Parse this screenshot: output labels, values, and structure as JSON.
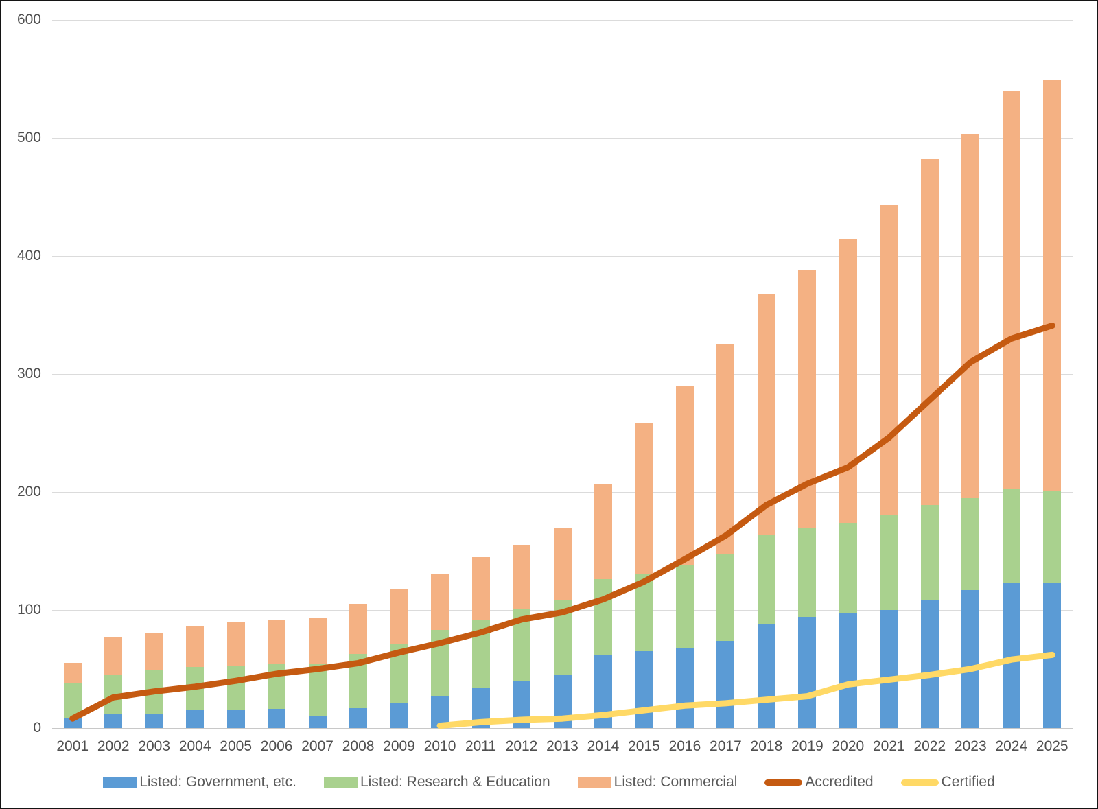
{
  "chart_data": {
    "type": "combo-stacked-bar-line",
    "title": "",
    "categories": [
      "2001",
      "2002",
      "2003",
      "2004",
      "2005",
      "2006",
      "2007",
      "2008",
      "2009",
      "2010",
      "2011",
      "2012",
      "2013",
      "2014",
      "2015",
      "2016",
      "2017",
      "2018",
      "2019",
      "2020",
      "2021",
      "2022",
      "2023",
      "2024",
      "2025"
    ],
    "series": [
      {
        "name": "Listed: Government, etc.",
        "type": "bar",
        "color": "#5B9BD5",
        "values": [
          9,
          12,
          12,
          15,
          15,
          16,
          10,
          17,
          21,
          27,
          34,
          40,
          45,
          62,
          65,
          68,
          74,
          88,
          94,
          97,
          100,
          108,
          117,
          123,
          123
        ]
      },
      {
        "name": "Listed: Research & Education",
        "type": "bar",
        "color": "#A9D18E",
        "values": [
          29,
          33,
          37,
          37,
          38,
          38,
          44,
          46,
          50,
          56,
          57,
          61,
          63,
          64,
          66,
          70,
          73,
          76,
          76,
          77,
          81,
          81,
          78,
          80,
          78
        ]
      },
      {
        "name": "Listed: Commercial",
        "type": "bar",
        "color": "#F4B183",
        "values": [
          17,
          32,
          31,
          34,
          37,
          38,
          39,
          42,
          47,
          47,
          54,
          54,
          62,
          81,
          127,
          152,
          178,
          204,
          218,
          240,
          262,
          293,
          308,
          337,
          348
        ]
      },
      {
        "name": "Accredited",
        "type": "line",
        "color": "#C55A11",
        "values": [
          8,
          26,
          31,
          35,
          40,
          46,
          50,
          55,
          64,
          72,
          81,
          92,
          98,
          109,
          124,
          143,
          163,
          189,
          207,
          221,
          246,
          278,
          310,
          330,
          341
        ]
      },
      {
        "name": "Certified",
        "type": "line",
        "color": "#FFD966",
        "values": [
          null,
          null,
          null,
          null,
          null,
          null,
          null,
          null,
          null,
          2,
          5,
          7,
          8,
          11,
          15,
          19,
          21,
          24,
          27,
          37,
          41,
          45,
          50,
          58,
          62
        ]
      }
    ],
    "stacked": true,
    "ylim": [
      0,
      600
    ],
    "yticks": [
      0,
      100,
      200,
      300,
      400,
      500,
      600
    ],
    "grid": true,
    "legend_position": "bottom",
    "x_axis_label": "",
    "y_axis_label": ""
  },
  "style": {
    "background": "#FFFFFF",
    "frame_border_color": "#141414",
    "grid_color": "#DBDBDB",
    "axis_line_color": "#C8C8C8",
    "axis_label_color": "#4F4F4F",
    "legend_text_color": "#595959"
  }
}
